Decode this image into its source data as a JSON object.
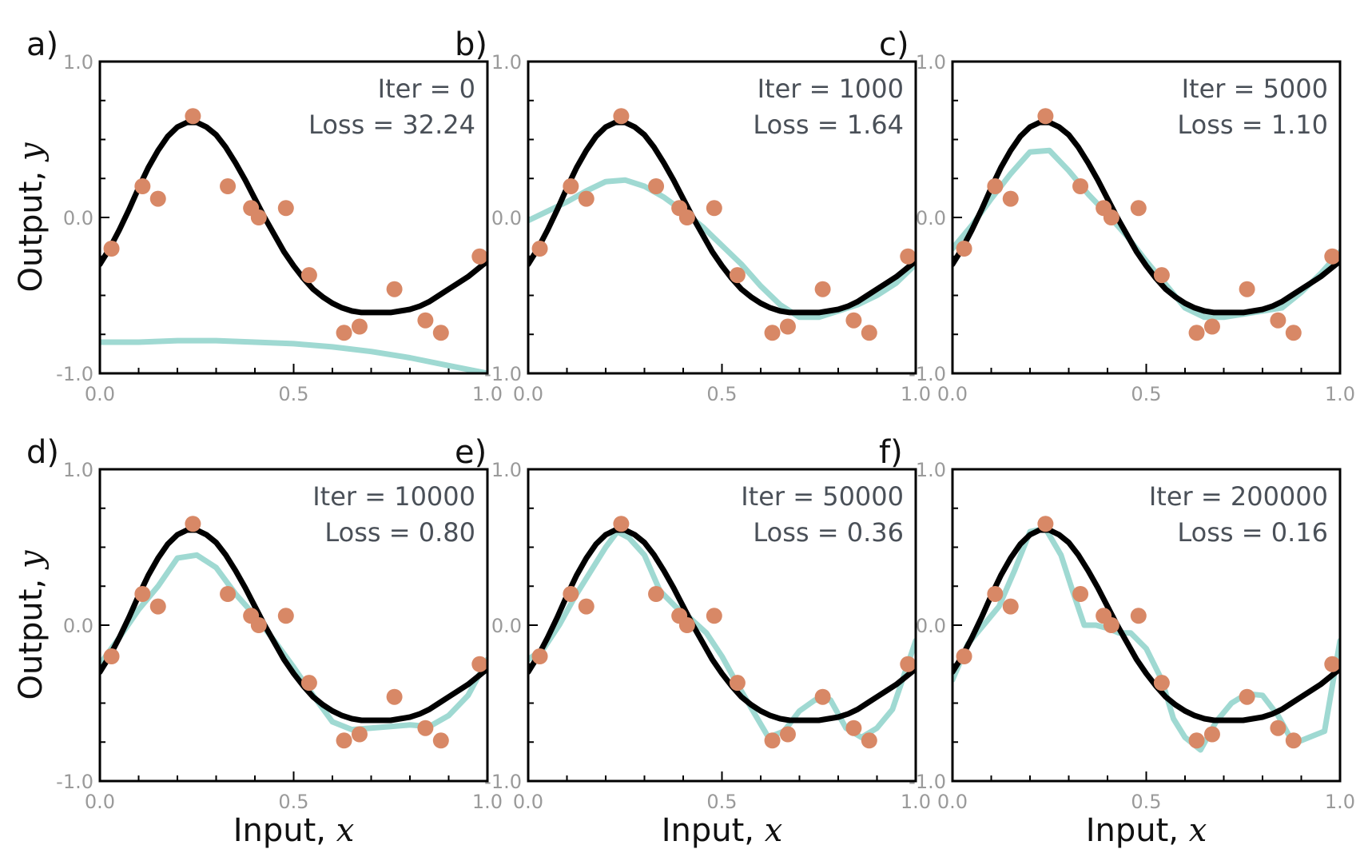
{
  "chart_data": {
    "type": "line",
    "shared": {
      "xlim": [
        0,
        1
      ],
      "ylim": [
        -1,
        1
      ],
      "x_ticks": [
        "0.0",
        "0.5",
        "1.0"
      ],
      "y_ticks": [
        "1.0",
        "0.0",
        "-1.0"
      ],
      "xlabel": "Input,",
      "xlabel_var": "x",
      "ylabel": "Output,",
      "ylabel_var": "y",
      "true_function_color": "#000000",
      "model_color": "#9fd9d2",
      "data_color": "#d88866",
      "data_points": [
        {
          "x": 0.03,
          "y": -0.2
        },
        {
          "x": 0.11,
          "y": 0.2
        },
        {
          "x": 0.15,
          "y": 0.12
        },
        {
          "x": 0.24,
          "y": 0.65
        },
        {
          "x": 0.33,
          "y": 0.2
        },
        {
          "x": 0.39,
          "y": 0.06
        },
        {
          "x": 0.41,
          "y": 0.0
        },
        {
          "x": 0.48,
          "y": 0.06
        },
        {
          "x": 0.54,
          "y": -0.37
        },
        {
          "x": 0.63,
          "y": -0.74
        },
        {
          "x": 0.67,
          "y": -0.7
        },
        {
          "x": 0.76,
          "y": -0.46
        },
        {
          "x": 0.84,
          "y": -0.66
        },
        {
          "x": 0.88,
          "y": -0.74
        },
        {
          "x": 0.98,
          "y": -0.25
        }
      ],
      "true_function": {
        "x": [
          0.0,
          0.025,
          0.05,
          0.075,
          0.1,
          0.125,
          0.15,
          0.175,
          0.2,
          0.225,
          0.25,
          0.275,
          0.3,
          0.325,
          0.35,
          0.375,
          0.4,
          0.425,
          0.45,
          0.475,
          0.5,
          0.525,
          0.55,
          0.575,
          0.6,
          0.625,
          0.65,
          0.675,
          0.7,
          0.725,
          0.75,
          0.775,
          0.8,
          0.825,
          0.85,
          0.875,
          0.9,
          0.925,
          0.95,
          0.975,
          1.0
        ],
        "y": [
          -0.3,
          -0.2,
          -0.08,
          0.05,
          0.19,
          0.32,
          0.43,
          0.52,
          0.58,
          0.61,
          0.61,
          0.58,
          0.53,
          0.45,
          0.35,
          0.24,
          0.12,
          0.0,
          -0.11,
          -0.22,
          -0.31,
          -0.39,
          -0.46,
          -0.51,
          -0.55,
          -0.58,
          -0.6,
          -0.61,
          -0.61,
          -0.61,
          -0.61,
          -0.6,
          -0.59,
          -0.57,
          -0.54,
          -0.5,
          -0.46,
          -0.42,
          -0.38,
          -0.33,
          -0.28
        ]
      }
    },
    "panels": [
      {
        "label": "a)",
        "iter_text": "Iter = 0",
        "loss_text": "Loss = 32.24",
        "iter": 0,
        "loss": 32.24,
        "model": {
          "x": [
            0.0,
            0.1,
            0.2,
            0.3,
            0.4,
            0.5,
            0.6,
            0.7,
            0.8,
            0.9,
            1.0
          ],
          "y": [
            -0.8,
            -0.8,
            -0.79,
            -0.79,
            -0.8,
            -0.81,
            -0.83,
            -0.86,
            -0.9,
            -0.95,
            -1.0
          ]
        }
      },
      {
        "label": "b)",
        "iter_text": "Iter = 1000",
        "loss_text": "Loss = 1.64",
        "iter": 1000,
        "loss": 1.64,
        "model": {
          "x": [
            0.0,
            0.05,
            0.1,
            0.15,
            0.2,
            0.25,
            0.3,
            0.35,
            0.4,
            0.45,
            0.5,
            0.55,
            0.6,
            0.65,
            0.7,
            0.75,
            0.8,
            0.85,
            0.9,
            0.95,
            1.0
          ],
          "y": [
            -0.02,
            0.04,
            0.1,
            0.17,
            0.23,
            0.24,
            0.2,
            0.13,
            0.04,
            -0.06,
            -0.18,
            -0.3,
            -0.44,
            -0.56,
            -0.64,
            -0.64,
            -0.6,
            -0.56,
            -0.5,
            -0.42,
            -0.3
          ]
        }
      },
      {
        "label": "c)",
        "iter_text": "Iter = 5000",
        "loss_text": "Loss = 1.10",
        "iter": 5000,
        "loss": 1.1,
        "model": {
          "x": [
            0.0,
            0.05,
            0.1,
            0.15,
            0.2,
            0.25,
            0.3,
            0.35,
            0.4,
            0.45,
            0.5,
            0.55,
            0.6,
            0.65,
            0.7,
            0.75,
            0.8,
            0.85,
            0.9,
            0.95,
            1.0
          ],
          "y": [
            -0.2,
            -0.05,
            0.12,
            0.28,
            0.42,
            0.43,
            0.3,
            0.15,
            0.02,
            -0.12,
            -0.28,
            -0.43,
            -0.58,
            -0.64,
            -0.64,
            -0.62,
            -0.6,
            -0.58,
            -0.48,
            -0.36,
            -0.22
          ]
        }
      },
      {
        "label": "d)",
        "iter_text": "Iter = 10000",
        "loss_text": "Loss = 0.80",
        "iter": 10000,
        "loss": 0.8,
        "model": {
          "x": [
            0.0,
            0.05,
            0.1,
            0.15,
            0.2,
            0.25,
            0.3,
            0.35,
            0.4,
            0.45,
            0.5,
            0.55,
            0.6,
            0.65,
            0.7,
            0.75,
            0.8,
            0.85,
            0.9,
            0.95,
            1.0
          ],
          "y": [
            -0.25,
            -0.08,
            0.1,
            0.25,
            0.43,
            0.45,
            0.37,
            0.2,
            0.06,
            -0.1,
            -0.27,
            -0.45,
            -0.62,
            -0.67,
            -0.66,
            -0.65,
            -0.64,
            -0.65,
            -0.58,
            -0.45,
            -0.22
          ]
        }
      },
      {
        "label": "e)",
        "iter_text": "Iter = 50000",
        "loss_text": "Loss = 0.36",
        "iter": 50000,
        "loss": 0.36,
        "model": {
          "x": [
            0.0,
            0.04,
            0.08,
            0.12,
            0.16,
            0.2,
            0.23,
            0.26,
            0.3,
            0.34,
            0.38,
            0.42,
            0.46,
            0.5,
            0.54,
            0.58,
            0.62,
            0.66,
            0.7,
            0.74,
            0.78,
            0.82,
            0.86,
            0.9,
            0.94,
            1.0
          ],
          "y": [
            -0.22,
            -0.15,
            0.0,
            0.18,
            0.34,
            0.5,
            0.6,
            0.56,
            0.45,
            0.22,
            0.12,
            0.04,
            -0.05,
            -0.2,
            -0.38,
            -0.55,
            -0.72,
            -0.68,
            -0.55,
            -0.48,
            -0.48,
            -0.66,
            -0.72,
            -0.66,
            -0.54,
            -0.1
          ]
        }
      },
      {
        "label": "f)",
        "iter_text": "Iter = 200000",
        "loss_text": "Loss = 0.16",
        "iter": 200000,
        "loss": 0.16,
        "model": {
          "x": [
            0.0,
            0.04,
            0.08,
            0.12,
            0.16,
            0.2,
            0.24,
            0.28,
            0.31,
            0.34,
            0.37,
            0.4,
            0.43,
            0.46,
            0.5,
            0.54,
            0.57,
            0.6,
            0.64,
            0.68,
            0.72,
            0.76,
            0.8,
            0.84,
            0.88,
            0.92,
            0.96,
            1.0
          ],
          "y": [
            -0.35,
            -0.12,
            0.0,
            0.12,
            0.35,
            0.6,
            0.62,
            0.45,
            0.22,
            0.0,
            0.0,
            -0.02,
            -0.05,
            -0.05,
            -0.15,
            -0.35,
            -0.6,
            -0.72,
            -0.8,
            -0.62,
            -0.5,
            -0.44,
            -0.45,
            -0.58,
            -0.76,
            -0.72,
            -0.68,
            -0.1
          ]
        }
      }
    ]
  }
}
